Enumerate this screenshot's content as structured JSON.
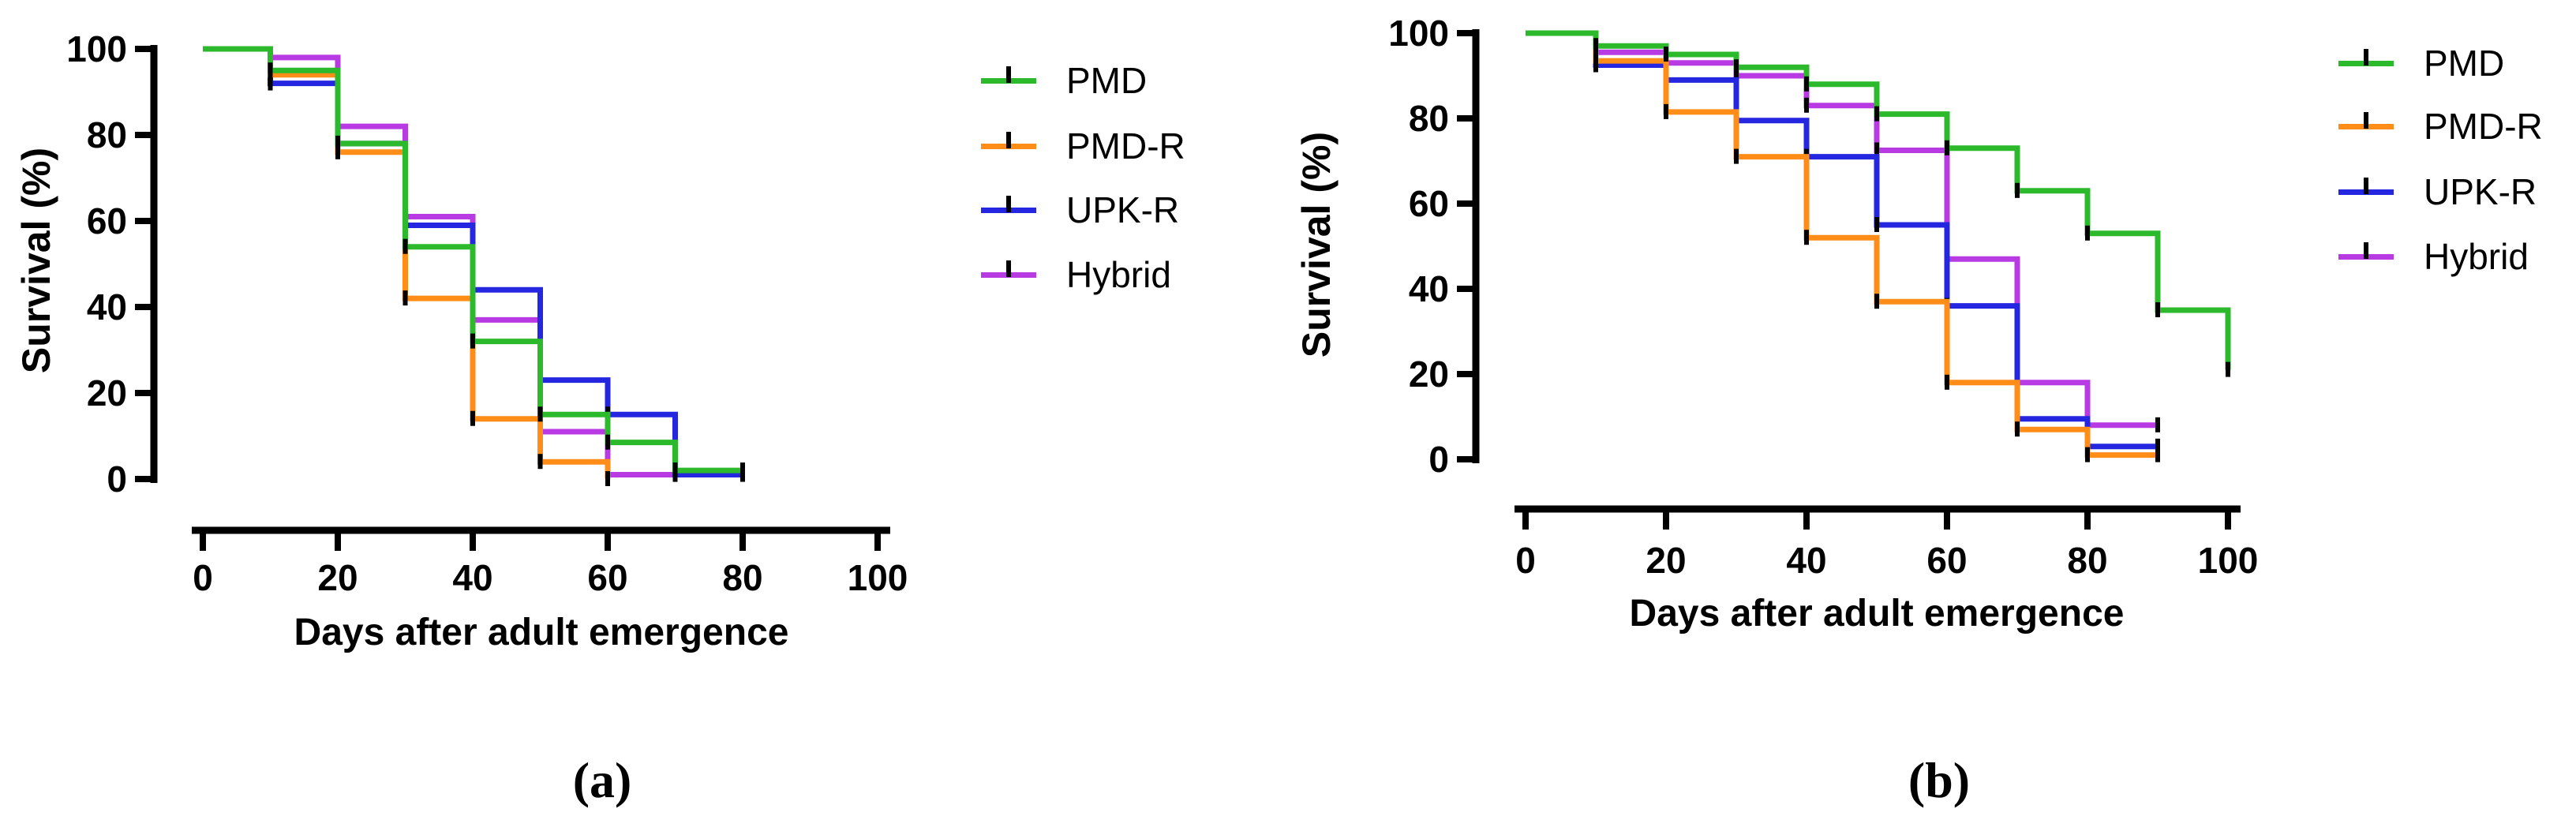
{
  "chart_data": [
    {
      "type": "line",
      "subtype": "step-survival-kaplan-meier",
      "panel_label": "(a)",
      "xlabel": "Days after adult emergence",
      "ylabel": "Survival (%)",
      "xlim": [
        0,
        100
      ],
      "ylim": [
        0,
        100
      ],
      "x_ticks": [
        0,
        20,
        40,
        60,
        80,
        100
      ],
      "y_ticks": [
        0,
        20,
        40,
        60,
        80,
        100
      ],
      "grid": false,
      "legend_position": "right",
      "series": [
        {
          "name": "PMD",
          "color": "#2cba2c",
          "points": [
            [
              0,
              100
            ],
            [
              10,
              95
            ],
            [
              20,
              78
            ],
            [
              30,
              54
            ],
            [
              40,
              32
            ],
            [
              50,
              15
            ],
            [
              60,
              8.5
            ],
            [
              70,
              2
            ],
            [
              80,
              2
            ]
          ]
        },
        {
          "name": "PMD-R",
          "color": "#ff8d18",
          "points": [
            [
              0,
              100
            ],
            [
              10,
              94
            ],
            [
              20,
              76
            ],
            [
              30,
              42
            ],
            [
              40,
              14
            ],
            [
              50,
              4
            ],
            [
              60,
              0
            ]
          ]
        },
        {
          "name": "UPK-R",
          "color": "#2526e0",
          "points": [
            [
              0,
              100
            ],
            [
              10,
              92
            ],
            [
              20,
              78
            ],
            [
              30,
              59
            ],
            [
              40,
              44
            ],
            [
              50,
              23
            ],
            [
              60,
              15
            ],
            [
              70,
              1
            ],
            [
              80,
              1
            ]
          ]
        },
        {
          "name": "Hybrid",
          "color": "#b73ae3",
          "points": [
            [
              0,
              100
            ],
            [
              10,
              98
            ],
            [
              20,
              82
            ],
            [
              30,
              61
            ],
            [
              40,
              37
            ],
            [
              50,
              11
            ],
            [
              60,
              1
            ],
            [
              70,
              1
            ]
          ]
        }
      ]
    },
    {
      "type": "line",
      "subtype": "step-survival-kaplan-meier",
      "panel_label": "(b)",
      "xlabel": "Days after adult emergence",
      "ylabel": "Survival (%)",
      "xlim": [
        0,
        100
      ],
      "ylim": [
        0,
        100
      ],
      "x_ticks": [
        0,
        20,
        40,
        60,
        80,
        100
      ],
      "y_ticks": [
        0,
        20,
        40,
        60,
        80,
        100
      ],
      "grid": false,
      "legend_position": "right",
      "series": [
        {
          "name": "PMD",
          "color": "#2cba2c",
          "points": [
            [
              0,
              100
            ],
            [
              10,
              97
            ],
            [
              20,
              95
            ],
            [
              30,
              92
            ],
            [
              40,
              88
            ],
            [
              50,
              81
            ],
            [
              60,
              73
            ],
            [
              70,
              63
            ],
            [
              80,
              53
            ],
            [
              90,
              35
            ],
            [
              100,
              21
            ]
          ]
        },
        {
          "name": "PMD-R",
          "color": "#ff8d18",
          "points": [
            [
              0,
              100
            ],
            [
              10,
              93.5
            ],
            [
              20,
              81.5
            ],
            [
              30,
              71
            ],
            [
              40,
              52
            ],
            [
              50,
              37
            ],
            [
              60,
              18
            ],
            [
              70,
              7
            ],
            [
              80,
              1
            ],
            [
              90,
              1
            ]
          ]
        },
        {
          "name": "UPK-R",
          "color": "#2526e0",
          "points": [
            [
              0,
              100
            ],
            [
              10,
              92.5
            ],
            [
              20,
              89
            ],
            [
              30,
              79.5
            ],
            [
              40,
              71
            ],
            [
              50,
              55
            ],
            [
              60,
              36
            ],
            [
              70,
              9.5
            ],
            [
              80,
              3
            ],
            [
              90,
              3
            ]
          ]
        },
        {
          "name": "Hybrid",
          "color": "#b73ae3",
          "points": [
            [
              0,
              100
            ],
            [
              10,
              95.5
            ],
            [
              20,
              93
            ],
            [
              30,
              90
            ],
            [
              40,
              83
            ],
            [
              50,
              72.5
            ],
            [
              60,
              47
            ],
            [
              70,
              18
            ],
            [
              80,
              8
            ],
            [
              90,
              8
            ]
          ]
        }
      ]
    }
  ]
}
